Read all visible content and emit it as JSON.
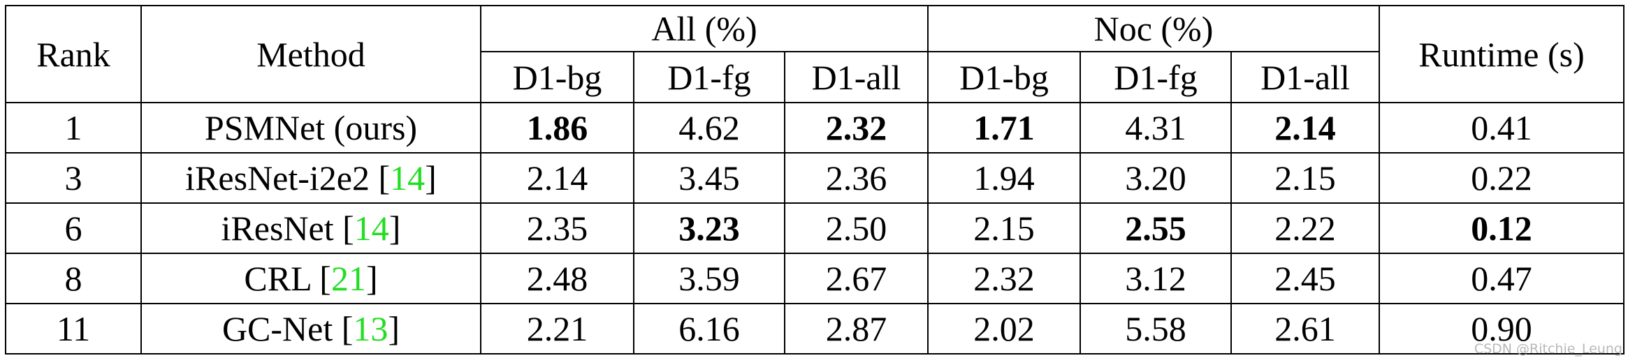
{
  "table": {
    "header": {
      "rank": "Rank",
      "method": "Method",
      "groups": [
        "All (%)",
        "Noc (%)"
      ],
      "sub": [
        "D1-bg",
        "D1-fg",
        "D1-all",
        "D1-bg",
        "D1-fg",
        "D1-all"
      ],
      "runtime": "Runtime (s)"
    },
    "rows": [
      {
        "rank": "1",
        "method": {
          "name": "PSMNet (ours)"
        },
        "values": [
          "1.86",
          "4.62",
          "2.32",
          "1.71",
          "4.31",
          "2.14",
          "0.41"
        ],
        "bold": [
          true,
          false,
          true,
          true,
          false,
          true,
          false
        ]
      },
      {
        "rank": "3",
        "method": {
          "name": "iResNet-i2e2",
          "citation": [
            "[",
            "14",
            "]"
          ]
        },
        "values": [
          "2.14",
          "3.45",
          "2.36",
          "1.94",
          "3.20",
          "2.15",
          "0.22"
        ],
        "bold": [
          false,
          false,
          false,
          false,
          false,
          false,
          false
        ]
      },
      {
        "rank": "6",
        "method": {
          "name": "iResNet",
          "citation": [
            "[",
            "14",
            "]"
          ]
        },
        "values": [
          "2.35",
          "3.23",
          "2.50",
          "2.15",
          "2.55",
          "2.22",
          "0.12"
        ],
        "bold": [
          false,
          true,
          false,
          false,
          true,
          false,
          true
        ]
      },
      {
        "rank": "8",
        "method": {
          "name": "CRL",
          "citation": [
            "[",
            "21",
            "]"
          ]
        },
        "values": [
          "2.48",
          "3.59",
          "2.67",
          "2.32",
          "3.12",
          "2.45",
          "0.47"
        ],
        "bold": [
          false,
          false,
          false,
          false,
          false,
          false,
          false
        ]
      },
      {
        "rank": "11",
        "method": {
          "name": "GC-Net",
          "citation": [
            "[",
            "13",
            "]"
          ]
        },
        "values": [
          "2.21",
          "6.16",
          "2.87",
          "2.02",
          "5.58",
          "2.61",
          "0.90"
        ],
        "bold": [
          false,
          false,
          false,
          false,
          false,
          false,
          false
        ]
      }
    ],
    "citation_color": "#22dd22"
  },
  "watermark": "CSDN @Ritchie_Leung"
}
